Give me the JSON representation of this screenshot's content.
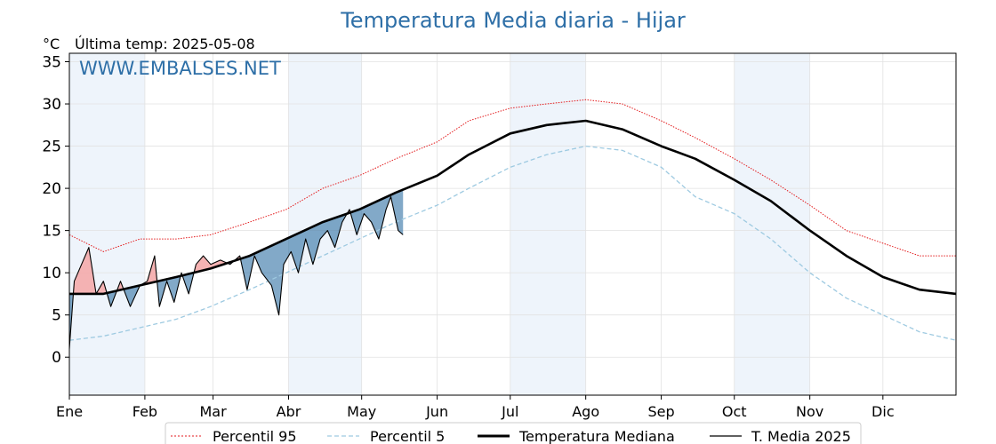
{
  "chart_data": {
    "type": "line",
    "title": "Temperatura Media diaria - Hijar",
    "unit_label": "°C",
    "subtitle": "Última temp: 2025-05-08",
    "watermark": "WWW.EMBALSES.NET",
    "xlabel": "",
    "ylabel": "",
    "xlim": [
      1,
      365
    ],
    "ylim": [
      -4.5,
      36
    ],
    "yticks": [
      0,
      5,
      10,
      15,
      20,
      25,
      30,
      35
    ],
    "months": [
      "Ene",
      "Feb",
      "Mar",
      "Abr",
      "May",
      "Jun",
      "Jul",
      "Ago",
      "Sep",
      "Oct",
      "Nov",
      "Dic"
    ],
    "month_start_days": [
      1,
      32,
      60,
      91,
      121,
      152,
      182,
      213,
      244,
      274,
      305,
      335
    ],
    "grid": true,
    "legend_position": "bottom-center",
    "colors": {
      "p95": "#e31a1c",
      "p5": "#9ecae1",
      "median": "#000000",
      "current": "#000000",
      "above_fill": "#f4a6a6",
      "below_fill": "#2f6fa3",
      "month_band": "#eef4fb",
      "title": "#2e6fa7",
      "watermark": "#2e6fa7"
    },
    "series": [
      {
        "name": "Percentil 95",
        "key": "p95",
        "style": "dotted-red",
        "points": [
          [
            1,
            14.5
          ],
          [
            15,
            12.5
          ],
          [
            30,
            14
          ],
          [
            45,
            14
          ],
          [
            59,
            14.5
          ],
          [
            75,
            16
          ],
          [
            90,
            17.5
          ],
          [
            105,
            20
          ],
          [
            120,
            21.5
          ],
          [
            135,
            23.5
          ],
          [
            152,
            25.5
          ],
          [
            165,
            28
          ],
          [
            182,
            29.5
          ],
          [
            197,
            30
          ],
          [
            213,
            30.5
          ],
          [
            228,
            30
          ],
          [
            244,
            28
          ],
          [
            258,
            26
          ],
          [
            274,
            23.5
          ],
          [
            289,
            21
          ],
          [
            305,
            18
          ],
          [
            320,
            15
          ],
          [
            335,
            13.5
          ],
          [
            350,
            12
          ],
          [
            365,
            12
          ]
        ]
      },
      {
        "name": "Percentil 5",
        "key": "p5",
        "style": "dashed-lightblue",
        "points": [
          [
            1,
            2
          ],
          [
            15,
            2.5
          ],
          [
            30,
            3.5
          ],
          [
            45,
            4.5
          ],
          [
            59,
            6
          ],
          [
            75,
            8
          ],
          [
            90,
            10
          ],
          [
            105,
            12
          ],
          [
            120,
            14
          ],
          [
            135,
            16
          ],
          [
            152,
            18
          ],
          [
            165,
            20
          ],
          [
            182,
            22.5
          ],
          [
            197,
            24
          ],
          [
            213,
            25
          ],
          [
            228,
            24.5
          ],
          [
            244,
            22.5
          ],
          [
            258,
            19
          ],
          [
            274,
            17
          ],
          [
            289,
            14
          ],
          [
            305,
            10
          ],
          [
            320,
            7
          ],
          [
            335,
            5
          ],
          [
            350,
            3
          ],
          [
            365,
            2
          ]
        ]
      },
      {
        "name": "Temperatura Mediana",
        "key": "median",
        "style": "thick-black",
        "points": [
          [
            1,
            7.5
          ],
          [
            15,
            7.5
          ],
          [
            30,
            8.5
          ],
          [
            45,
            9.5
          ],
          [
            59,
            10.5
          ],
          [
            75,
            12
          ],
          [
            90,
            14
          ],
          [
            105,
            16
          ],
          [
            120,
            17.5
          ],
          [
            135,
            19.5
          ],
          [
            152,
            21.5
          ],
          [
            165,
            24
          ],
          [
            182,
            26.5
          ],
          [
            197,
            27.5
          ],
          [
            213,
            28
          ],
          [
            228,
            27
          ],
          [
            244,
            25
          ],
          [
            258,
            23.5
          ],
          [
            274,
            21
          ],
          [
            289,
            18.5
          ],
          [
            305,
            15
          ],
          [
            320,
            12
          ],
          [
            335,
            9.5
          ],
          [
            350,
            8
          ],
          [
            365,
            7.5
          ]
        ]
      },
      {
        "name": "T. Media 2025",
        "key": "current",
        "style": "thin-black",
        "points": [
          [
            1,
            1
          ],
          [
            3,
            9
          ],
          [
            6,
            11
          ],
          [
            9,
            13
          ],
          [
            12,
            7.5
          ],
          [
            15,
            9
          ],
          [
            18,
            6
          ],
          [
            22,
            9
          ],
          [
            26,
            6
          ],
          [
            30,
            8.5
          ],
          [
            33,
            9
          ],
          [
            36,
            12
          ],
          [
            38,
            6
          ],
          [
            41,
            9
          ],
          [
            44,
            6.5
          ],
          [
            47,
            10
          ],
          [
            50,
            7.5
          ],
          [
            53,
            11
          ],
          [
            56,
            12
          ],
          [
            59,
            11
          ],
          [
            63,
            11.5
          ],
          [
            67,
            11
          ],
          [
            71,
            12
          ],
          [
            74,
            8
          ],
          [
            77,
            12
          ],
          [
            80,
            10
          ],
          [
            84,
            8.5
          ],
          [
            87,
            5
          ],
          [
            89,
            11
          ],
          [
            92,
            12.5
          ],
          [
            95,
            10
          ],
          [
            98,
            14
          ],
          [
            101,
            11
          ],
          [
            104,
            14
          ],
          [
            107,
            15
          ],
          [
            110,
            13
          ],
          [
            113,
            16
          ],
          [
            116,
            17.5
          ],
          [
            119,
            14.5
          ],
          [
            122,
            17
          ],
          [
            125,
            16
          ],
          [
            128,
            14
          ],
          [
            131,
            17.5
          ],
          [
            133,
            19
          ],
          [
            136,
            15
          ],
          [
            138,
            14.5
          ]
        ]
      }
    ]
  }
}
